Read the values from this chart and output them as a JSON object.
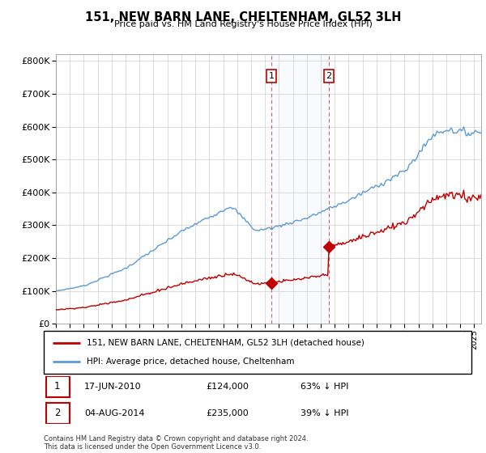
{
  "title": "151, NEW BARN LANE, CHELTENHAM, GL52 3LH",
  "subtitle": "Price paid vs. HM Land Registry's House Price Index (HPI)",
  "legend_line1": "151, NEW BARN LANE, CHELTENHAM, GL52 3LH (detached house)",
  "legend_line2": "HPI: Average price, detached house, Cheltenham",
  "footnote": "Contains HM Land Registry data © Crown copyright and database right 2024.\nThis data is licensed under the Open Government Licence v3.0.",
  "transaction1_date": "17-JUN-2010",
  "transaction1_price": "£124,000",
  "transaction1_hpi": "63% ↓ HPI",
  "transaction2_date": "04-AUG-2014",
  "transaction2_price": "£235,000",
  "transaction2_hpi": "39% ↓ HPI",
  "hpi_color": "#5b9bd5",
  "price_color": "#c00000",
  "vline_color": "#c00000",
  "background_color": "#ffffff",
  "grid_color": "#d0d0d0",
  "ylim": [
    0,
    820000
  ],
  "yticks": [
    0,
    100000,
    200000,
    300000,
    400000,
    500000,
    600000,
    700000,
    800000
  ],
  "xlim_start": 1995.0,
  "xlim_end": 2025.5,
  "t_buy1": 2010.458,
  "t_buy2": 2014.583,
  "price1": 124000,
  "price2": 235000
}
